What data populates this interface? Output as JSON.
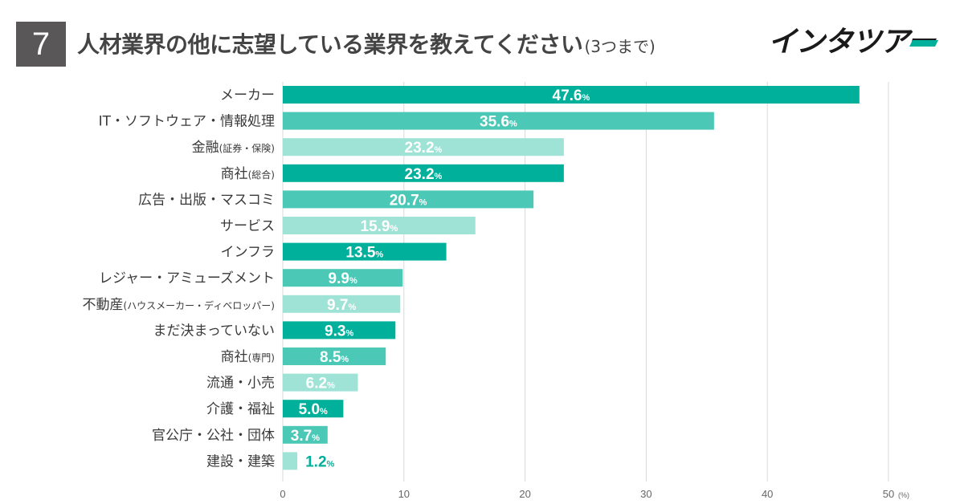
{
  "header": {
    "number": "7",
    "title": "人材業界の他に志望している業界を教えてください",
    "subtitle": "(3つまで)",
    "logo_text": "インタツアー"
  },
  "colors": {
    "dark": "#00B09B",
    "medium": "#4CC9B6",
    "light": "#9FE3D7",
    "badge": "#595757",
    "grid": "#D9D9D9"
  },
  "chart_data": {
    "type": "bar",
    "orientation": "horizontal",
    "title": "人材業界の他に志望している業界を教えてください(3つまで)",
    "xlabel": "",
    "ylabel": "",
    "xlim": [
      0,
      50
    ],
    "ticks": [
      0,
      10,
      20,
      30,
      40,
      50
    ],
    "unit": "(%)",
    "value_suffix": "%",
    "grid": true,
    "categories": [
      {
        "main": "メーカー",
        "sub": ""
      },
      {
        "main": "IT・ソフトウェア・情報処理",
        "sub": ""
      },
      {
        "main": "金融",
        "sub": "(証券・保険)"
      },
      {
        "main": "商社",
        "sub": "(総合)"
      },
      {
        "main": "広告・出版・マスコミ",
        "sub": ""
      },
      {
        "main": "サービス",
        "sub": ""
      },
      {
        "main": "インフラ",
        "sub": ""
      },
      {
        "main": "レジャー・アミューズメント",
        "sub": ""
      },
      {
        "main": "不動産",
        "sub": "(ハウスメーカー・ディベロッパー)"
      },
      {
        "main": "まだ決まっていない",
        "sub": ""
      },
      {
        "main": "商社",
        "sub": "(専門)"
      },
      {
        "main": "流通・小売",
        "sub": ""
      },
      {
        "main": "介護・福祉",
        "sub": ""
      },
      {
        "main": "官公庁・公社・団体",
        "sub": ""
      },
      {
        "main": "建設・建築",
        "sub": ""
      }
    ],
    "values": [
      47.6,
      35.6,
      23.2,
      23.2,
      20.7,
      15.9,
      13.5,
      9.9,
      9.7,
      9.3,
      8.5,
      6.2,
      5.0,
      3.7,
      1.2
    ],
    "value_labels": [
      "47.6",
      "35.6",
      "23.2",
      "23.2",
      "20.7",
      "15.9",
      "13.5",
      "9.9",
      "9.7",
      "9.3",
      "8.5",
      "6.2",
      "5.0",
      "3.7",
      "1.2"
    ],
    "bar_colors": [
      "dark",
      "medium",
      "light",
      "dark",
      "medium",
      "light",
      "dark",
      "medium",
      "light",
      "dark",
      "medium",
      "light",
      "dark",
      "medium",
      "light"
    ]
  }
}
